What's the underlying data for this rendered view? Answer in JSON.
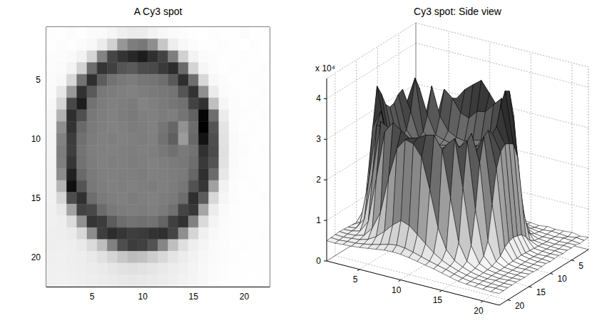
{
  "chart_data": [
    {
      "type": "heatmap",
      "title": "A Cy3 spot",
      "x": [
        1,
        2,
        3,
        4,
        5,
        6,
        7,
        8,
        9,
        10,
        11,
        12,
        13,
        14,
        15,
        16,
        17,
        18,
        19,
        20,
        21,
        22
      ],
      "y": [
        1,
        2,
        3,
        4,
        5,
        6,
        7,
        8,
        9,
        10,
        11,
        12,
        13,
        14,
        15,
        16,
        17,
        18,
        19,
        20,
        21,
        22
      ],
      "cells": [
        [
          3100,
          2900,
          3300,
          3000,
          3400,
          3600,
          4200,
          5200,
          5800,
          5600,
          4800,
          4000,
          3500,
          3200,
          3000,
          2800,
          3100,
          2900,
          3000,
          3200,
          2800,
          3000
        ],
        [
          3000,
          3200,
          3100,
          3400,
          3900,
          5600,
          9800,
          18500,
          22400,
          23100,
          19800,
          11200,
          5400,
          3800,
          3300,
          3000,
          2900,
          3100,
          3000,
          2800,
          3100,
          2900
        ],
        [
          3200,
          3300,
          3600,
          4800,
          9200,
          21500,
          30800,
          33500,
          35200,
          36800,
          34100,
          31200,
          22300,
          9800,
          4600,
          3400,
          3100,
          3000,
          2900,
          3100,
          3000,
          2800
        ],
        [
          3300,
          3500,
          4400,
          9600,
          24800,
          33200,
          31500,
          28400,
          27600,
          29800,
          30200,
          32500,
          34600,
          25200,
          9300,
          4200,
          3300,
          3000,
          3100,
          2900,
          3000,
          3100
        ],
        [
          3400,
          3800,
          8800,
          23900,
          34100,
          27200,
          24100,
          23000,
          22600,
          23400,
          23800,
          24600,
          27800,
          34200,
          24600,
          8700,
          3900,
          3200,
          3000,
          2900,
          3100,
          3000
        ],
        [
          3600,
          6400,
          18200,
          33800,
          27600,
          23200,
          22500,
          22100,
          21800,
          22400,
          22900,
          23100,
          23800,
          28400,
          33600,
          19600,
          5800,
          3400,
          3100,
          3000,
          2900,
          3100
        ],
        [
          3900,
          9200,
          30400,
          36900,
          24100,
          22600,
          21900,
          22300,
          22700,
          21500,
          22100,
          22800,
          23400,
          24200,
          31200,
          33800,
          12400,
          4100,
          3200,
          3000,
          3100,
          2900
        ],
        [
          4100,
          14600,
          34200,
          29300,
          23100,
          22200,
          21700,
          22400,
          22900,
          22100,
          21900,
          22600,
          22300,
          23800,
          26400,
          40500,
          24800,
          5600,
          3300,
          3100,
          3000,
          3100
        ],
        [
          4300,
          19800,
          33600,
          25400,
          22800,
          22100,
          21600,
          22000,
          22500,
          22300,
          21800,
          23600,
          25800,
          19200,
          24900,
          41200,
          28600,
          6800,
          3400,
          3000,
          3100,
          3000
        ],
        [
          4400,
          21600,
          32100,
          24300,
          22500,
          21900,
          22200,
          21700,
          22100,
          22400,
          22000,
          24100,
          26900,
          17800,
          25600,
          38400,
          29400,
          7200,
          3500,
          3100,
          3000,
          2900
        ],
        [
          4500,
          22400,
          31800,
          23900,
          22300,
          22000,
          21800,
          22100,
          22300,
          21900,
          22200,
          23200,
          24300,
          22800,
          24100,
          33800,
          29900,
          7400,
          3600,
          3200,
          3000,
          3100
        ],
        [
          4600,
          22100,
          33100,
          24100,
          22600,
          21800,
          22200,
          21900,
          22400,
          22100,
          21700,
          22300,
          22700,
          23100,
          24600,
          32600,
          28700,
          7100,
          3500,
          3100,
          3000,
          3000
        ],
        [
          4700,
          20300,
          36400,
          25200,
          22900,
          22100,
          21900,
          22300,
          22100,
          22600,
          21900,
          22100,
          22400,
          22800,
          25900,
          34100,
          25100,
          6200,
          3400,
          3100,
          3000,
          2900
        ],
        [
          4800,
          14200,
          38900,
          28600,
          23200,
          22400,
          22000,
          22200,
          21800,
          22300,
          22500,
          22100,
          22600,
          23400,
          28800,
          33200,
          16900,
          4800,
          3300,
          3000,
          3100,
          3000
        ],
        [
          4900,
          8900,
          29600,
          33900,
          24600,
          22800,
          22300,
          21900,
          22500,
          22100,
          21800,
          22400,
          22900,
          24800,
          34100,
          27400,
          8600,
          4100,
          3200,
          3000,
          2900,
          3100
        ],
        [
          5000,
          6200,
          16800,
          31200,
          30400,
          25100,
          23100,
          22500,
          22200,
          22600,
          22100,
          22800,
          24300,
          30800,
          32900,
          16400,
          5600,
          3600,
          3100,
          3000,
          3000,
          2900
        ],
        [
          5100,
          5400,
          8100,
          19400,
          33200,
          32100,
          27400,
          24800,
          23900,
          24300,
          24100,
          26200,
          31600,
          33700,
          21800,
          8300,
          4400,
          3400,
          3100,
          3000,
          2900,
          3000
        ],
        [
          5200,
          5300,
          5800,
          8700,
          20100,
          31800,
          34600,
          33200,
          31800,
          32400,
          33600,
          34100,
          30900,
          19600,
          9100,
          5100,
          3900,
          3300,
          3100,
          2900,
          3000,
          3100
        ],
        [
          5300,
          5200,
          5400,
          5900,
          8200,
          12600,
          21800,
          29400,
          32100,
          31600,
          28800,
          21200,
          12400,
          7600,
          5400,
          4300,
          3600,
          3200,
          3000,
          3100,
          2900,
          3000
        ],
        [
          5200,
          5100,
          5300,
          5500,
          6100,
          7300,
          9100,
          11200,
          12800,
          12100,
          10400,
          8600,
          6900,
          5600,
          4700,
          4000,
          3500,
          3200,
          3100,
          3000,
          2900,
          3000
        ],
        [
          5100,
          5000,
          5200,
          5300,
          5600,
          6000,
          6500,
          7100,
          7400,
          7200,
          6700,
          6100,
          5500,
          5000,
          4500,
          3900,
          3400,
          3100,
          3000,
          2900,
          3000,
          2900
        ],
        [
          5000,
          4900,
          5100,
          5200,
          5400,
          5700,
          6000,
          6300,
          6400,
          6300,
          6000,
          5600,
          5200,
          4800,
          4300,
          3800,
          3300,
          3100,
          3000,
          2900,
          2800,
          2900
        ]
      ],
      "xlim": [
        0.5,
        22.5
      ],
      "ylim": [
        22.5,
        0.5
      ],
      "xticks": [
        5,
        10,
        15,
        20
      ],
      "yticks": [
        5,
        10,
        15,
        20
      ],
      "grid": false
    },
    {
      "type": "surface",
      "title": "Cy3 spot: Side view",
      "x": [
        1,
        2,
        3,
        4,
        5,
        6,
        7,
        8,
        9,
        10,
        11,
        12,
        13,
        14,
        15,
        16,
        17,
        18,
        19,
        20,
        21,
        22
      ],
      "y": [
        1,
        2,
        3,
        4,
        5,
        6,
        7,
        8,
        9,
        10,
        11,
        12,
        13,
        14,
        15,
        16,
        17,
        18,
        19,
        20,
        21,
        22
      ],
      "cells": [
        [
          3100,
          2900,
          3300,
          3000,
          3400,
          3600,
          4200,
          5200,
          5800,
          5600,
          4800,
          4000,
          3500,
          3200,
          3000,
          2800,
          3100,
          2900,
          3000,
          3200,
          2800,
          3000
        ],
        [
          3000,
          3200,
          3100,
          3400,
          3900,
          5600,
          9800,
          18500,
          22400,
          23100,
          19800,
          11200,
          5400,
          3800,
          3300,
          3000,
          2900,
          3100,
          3000,
          2800,
          3100,
          2900
        ],
        [
          3200,
          3300,
          3600,
          4800,
          9200,
          21500,
          30800,
          33500,
          35200,
          36800,
          34100,
          31200,
          22300,
          9800,
          4600,
          3400,
          3100,
          3000,
          2900,
          3100,
          3000,
          2800
        ],
        [
          3300,
          3500,
          4400,
          9600,
          24800,
          33200,
          31500,
          28400,
          27600,
          29800,
          30200,
          32500,
          34600,
          25200,
          9300,
          4200,
          3300,
          3000,
          3100,
          2900,
          3000,
          3100
        ],
        [
          3400,
          3800,
          8800,
          23900,
          34100,
          27200,
          24100,
          23000,
          22600,
          23400,
          23800,
          24600,
          27800,
          34200,
          24600,
          8700,
          3900,
          3200,
          3000,
          2900,
          3100,
          3000
        ],
        [
          3600,
          6400,
          18200,
          33800,
          27600,
          23200,
          22500,
          22100,
          21800,
          22400,
          22900,
          23100,
          23800,
          28400,
          33600,
          19600,
          5800,
          3400,
          3100,
          3000,
          2900,
          3100
        ],
        [
          3900,
          9200,
          30400,
          36900,
          24100,
          22600,
          21900,
          22300,
          22700,
          21500,
          22100,
          22800,
          23400,
          24200,
          31200,
          33800,
          12400,
          4100,
          3200,
          3000,
          3100,
          2900
        ],
        [
          4100,
          14600,
          34200,
          29300,
          23100,
          22200,
          21700,
          22400,
          22900,
          22100,
          21900,
          22600,
          22300,
          23800,
          26400,
          40500,
          24800,
          5600,
          3300,
          3100,
          3000,
          3100
        ],
        [
          4300,
          19800,
          33600,
          25400,
          22800,
          22100,
          21600,
          22000,
          22500,
          22300,
          21800,
          23600,
          25800,
          19200,
          24900,
          41200,
          28600,
          6800,
          3400,
          3000,
          3100,
          3000
        ],
        [
          4400,
          21600,
          32100,
          24300,
          22500,
          21900,
          22200,
          21700,
          22100,
          22400,
          22000,
          24100,
          26900,
          17800,
          25600,
          38400,
          29400,
          7200,
          3500,
          3100,
          3000,
          2900
        ],
        [
          4500,
          22400,
          31800,
          23900,
          22300,
          22000,
          21800,
          22100,
          22300,
          21900,
          22200,
          23200,
          24300,
          22800,
          24100,
          33800,
          29900,
          7400,
          3600,
          3200,
          3000,
          3100
        ],
        [
          4600,
          22100,
          33100,
          24100,
          22600,
          21800,
          22200,
          21900,
          22400,
          22100,
          21700,
          22300,
          22700,
          23100,
          24600,
          32600,
          28700,
          7100,
          3500,
          3100,
          3000,
          3000
        ],
        [
          4700,
          20300,
          36400,
          25200,
          22900,
          22100,
          21900,
          22300,
          22100,
          22600,
          21900,
          22100,
          22400,
          22800,
          25900,
          34100,
          25100,
          6200,
          3400,
          3100,
          3000,
          2900
        ],
        [
          4800,
          14200,
          38900,
          28600,
          23200,
          22400,
          22000,
          22200,
          21800,
          22300,
          22500,
          22100,
          22600,
          23400,
          28800,
          33200,
          16900,
          4800,
          3300,
          3000,
          3100,
          3000
        ],
        [
          4900,
          8900,
          29600,
          33900,
          24600,
          22800,
          22300,
          21900,
          22500,
          22100,
          21800,
          22400,
          22900,
          24800,
          34100,
          27400,
          8600,
          4100,
          3200,
          3000,
          2900,
          3100
        ],
        [
          5000,
          6200,
          16800,
          31200,
          30400,
          25100,
          23100,
          22500,
          22200,
          22600,
          22100,
          22800,
          24300,
          30800,
          32900,
          16400,
          5600,
          3600,
          3100,
          3000,
          3000,
          2900
        ],
        [
          5100,
          5400,
          8100,
          19400,
          33200,
          32100,
          27400,
          24800,
          23900,
          24300,
          24100,
          26200,
          31600,
          33700,
          21800,
          8300,
          4400,
          3400,
          3100,
          3000,
          2900,
          3000
        ],
        [
          5200,
          5300,
          5800,
          8700,
          20100,
          31800,
          34600,
          33200,
          31800,
          32400,
          33600,
          34100,
          30900,
          19600,
          9100,
          5100,
          3900,
          3300,
          3100,
          2900,
          3000,
          3100
        ],
        [
          5300,
          5200,
          5400,
          5900,
          8200,
          12600,
          21800,
          29400,
          32100,
          31600,
          28800,
          21200,
          12400,
          7600,
          5400,
          4300,
          3600,
          3200,
          3000,
          3100,
          2900,
          3000
        ],
        [
          5200,
          5100,
          5300,
          5500,
          6100,
          7300,
          9100,
          11200,
          12800,
          12100,
          10400,
          8600,
          6900,
          5600,
          4700,
          4000,
          3500,
          3200,
          3100,
          3000,
          2900,
          3000
        ],
        [
          5100,
          5000,
          5200,
          5300,
          5600,
          6000,
          6500,
          7100,
          7400,
          7200,
          6700,
          6100,
          5500,
          5000,
          4500,
          3900,
          3400,
          3100,
          3000,
          2900,
          3000,
          2900
        ],
        [
          5000,
          4900,
          5100,
          5200,
          5400,
          5700,
          6000,
          6300,
          6400,
          6300,
          6000,
          5600,
          5200,
          4800,
          4300,
          3800,
          3300,
          3100,
          3000,
          2900,
          2800,
          2900
        ]
      ],
      "xlim": [
        1,
        22
      ],
      "ylim": [
        1,
        22
      ],
      "zlim": [
        0,
        45000
      ],
      "xticks": [
        5,
        10,
        15,
        20
      ],
      "yticks": [
        5,
        10,
        15,
        20
      ],
      "zticks": [
        0,
        {
          "value": 10000,
          "label": "1"
        },
        {
          "value": 20000,
          "label": "2"
        },
        {
          "value": 30000,
          "label": "3"
        },
        {
          "value": 40000,
          "label": "4"
        }
      ],
      "z_exponent_label": "x 10⁴",
      "grid": true
    }
  ]
}
